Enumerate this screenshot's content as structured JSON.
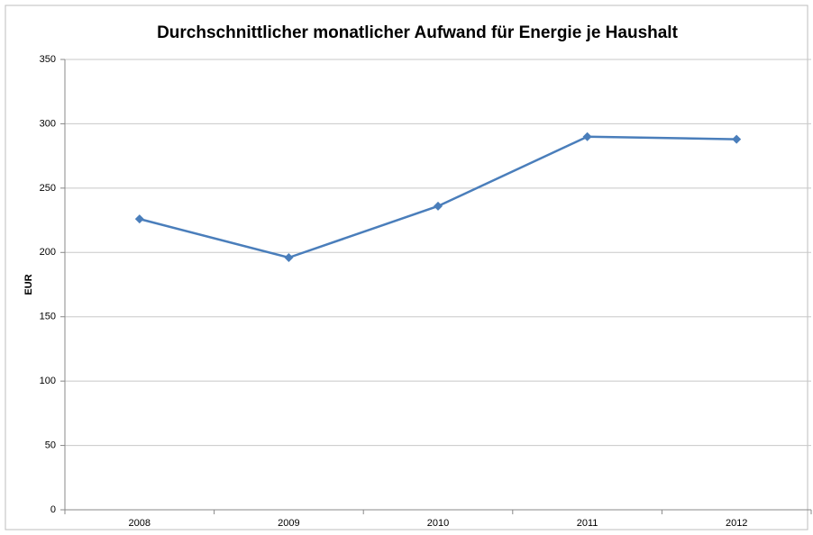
{
  "chart_data": {
    "type": "line",
    "title": "Durchschnittlicher monatlicher Aufwand für Energie je Haushalt",
    "y_label": "EUR",
    "categories": [
      "2008",
      "2009",
      "2010",
      "2011",
      "2012"
    ],
    "series": [
      {
        "name": "EUR",
        "color": "#4a7ebb",
        "values": [
          226,
          196,
          236,
          290,
          288
        ]
      }
    ],
    "ylim": [
      0,
      350
    ],
    "yticks": [
      0,
      50,
      100,
      150,
      200,
      250,
      300,
      350
    ],
    "grid": true
  }
}
